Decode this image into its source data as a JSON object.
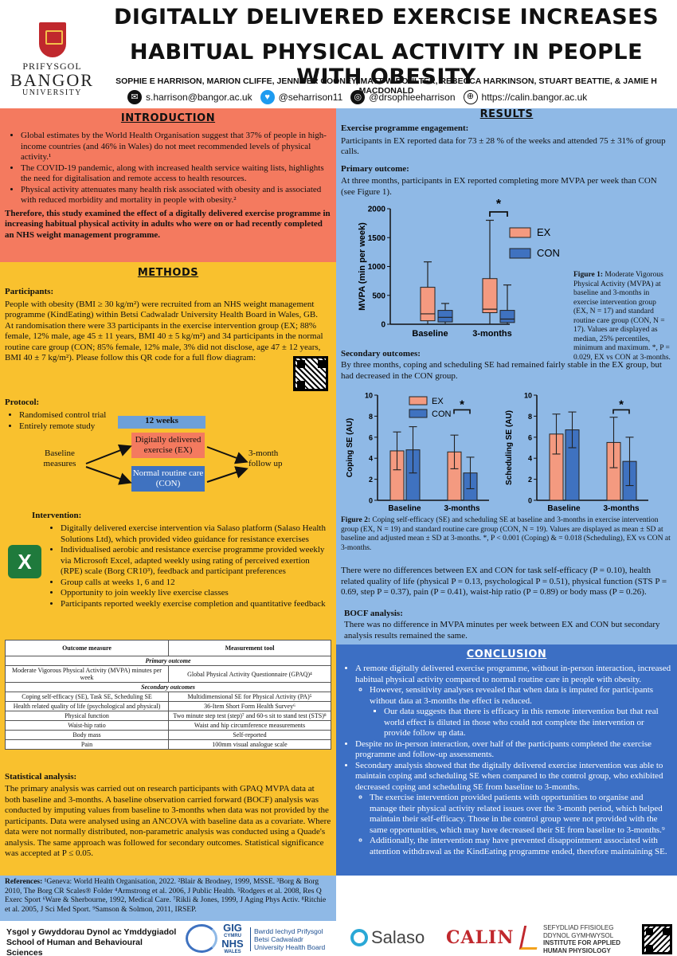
{
  "header": {
    "title_line1": "DIGITALLY DELIVERED EXERCISE INCREASES",
    "title_line2": "HABITUAL PHYSICAL ACTIVITY IN PEOPLE WITH OBESITY",
    "authors": "SOPHIE E HARRISON, MARION CLIFFE, JENNIFER COONEY, MATT W BOULTER, REBECCA HARKINSON, STUART BEATTIE, & JAMIE H MACDONALD",
    "logo": {
      "line1": "PRIFYSGOL",
      "line2": "BANGOR",
      "line3": "UNIVERSITY"
    },
    "contacts": [
      {
        "icon": "email-icon",
        "text": "s.harrison@bangor.ac.uk"
      },
      {
        "icon": "twitter-icon",
        "text": "@seharrison11"
      },
      {
        "icon": "instagram-icon",
        "text": "@drsophieeharrison"
      },
      {
        "icon": "globe-icon",
        "text": "https://calin.bangor.ac.uk"
      }
    ]
  },
  "intro": {
    "title": "INTRODUCTION",
    "bullets": [
      "Global estimates by the World Health Organisation suggest that 37% of people in high-income countries (and 46% in Wales) do not meet recommended levels of physical activity.¹",
      "The COVID-19 pandemic, along with increased health service waiting lists, highlights the need for digitalisation and remote access to health resources.",
      "Physical activity attenuates many health risk associated with obesity and is associated with reduced morbidity and mortality in people with obesity.²"
    ],
    "aim": "Therefore, this study examined the effect of a digitally delivered exercise programme in increasing habitual physical activity in adults who were on or had recently completed an NHS weight management programme."
  },
  "methods": {
    "title": "METHODS",
    "participants_heading": "Participants:",
    "participants_text": "People with obesity (BMI ≥ 30 kg/m²) were recruited from an NHS weight management programme (KindEating) within Betsi Cadwaladr University Health Board in Wales, GB. At randomisation there were 33 participants in the exercise intervention group (EX; 88% female, 12% male, age 45 ± 11 years, BMI 40 ± 5 kg/m²) and 34 participants in the normal routine care group (CON; 85% female, 12% male, 3% did not disclose, age 47 ± 12 years, BMI 40 ± 7 kg/m²). Please follow this QR code for a full flow diagram:",
    "protocol_heading": "Protocol:",
    "protocol_bullets": [
      "Randomised control trial",
      "Entirely remote study"
    ],
    "flow": {
      "weeks": "12 weeks",
      "baseline": "Baseline measures",
      "ex_box": "Digitally delivered exercise (EX)",
      "con_box": "Normal routine care (CON)",
      "followup": "3-month follow up"
    },
    "intervention_heading": "Intervention:",
    "intervention_bullets": [
      "Digitally delivered exercise intervention via Salaso platform (Salaso Health Solutions Ltd), which provided video guidance for resistance exercises",
      "Individualised aerobic and resistance exercise programme provided weekly via Microsoft Excel, adapted weekly using rating of perceived exertion (RPE) scale (Borg CR10³), feedback and participant preferences",
      "Group calls at weeks 1, 6 and 12",
      "Opportunity to join weekly live exercise classes",
      "Participants reported weekly exercise completion and quantitative feedback"
    ],
    "table": {
      "headers": [
        "Outcome measure",
        "Measurement tool"
      ],
      "primary_label": "Primary outcome",
      "secondary_label": "Secondary outcomes",
      "primary_rows": [
        [
          "Moderate Vigorous Physical Activity (MVPA) minutes per week",
          "Global Physical Activity Questionnaire (GPAQ)⁴"
        ]
      ],
      "secondary_rows": [
        [
          "Coping self-efficacy (SE), Task SE, Scheduling SE",
          "Multidimensional SE for Physical Activity (PA)⁵"
        ],
        [
          "Health related quality of life (psychological and physical)",
          "36-Item Short Form Health Survey⁶"
        ],
        [
          "Physical function",
          "Two minute step test (step)⁷ and 60-s sit to stand test (STS)⁸"
        ],
        [
          "Waist-hip ratio",
          "Waist and hip circumference measurements"
        ],
        [
          "Body mass",
          "Self-reported"
        ],
        [
          "Pain",
          "100mm visual analogue scale"
        ]
      ]
    },
    "stats_heading": "Statistical analysis:",
    "stats_text": "The primary analysis was carried out on research participants with GPAQ MVPA data at both baseline and 3-months. A baseline observation carried forward (BOCF) analysis was conducted by imputing values from baseline to 3-months when data was not provided by the participants. Data were analysed using an ANCOVA with baseline data as a covariate. Where data were not normally distributed, non-parametric analysis was conducted using a Quade's analysis. The same approach was followed for secondary outcomes. Statistical significance was accepted at P ≤ 0.05."
  },
  "references": {
    "label": "References:",
    "text": "¹Geneva: World Health Organisation, 2022. ²Blair & Brodney, 1999, MSSE. ³Borg & Borg 2010, The Borg CR Scales® Folder ⁴Armstrong et al. 2006, J Public Health. ⁵Rodgers et al. 2008, Res Q Exerc Sport ⁶Ware & Sherbourne, 1992, Medical Care. ⁷Rikli & Jones, 1999, J Aging Phys Activ. ⁸Ritchie et al. 2005, J Sci Med Sport. ⁹Samson & Solmon, 2011, IRSEP."
  },
  "results": {
    "title": "RESULTS",
    "engagement_heading": "Exercise programme engagement:",
    "engagement_text": "Participants in EX reported data for 73 ± 28 % of the weeks and attended 75 ± 31% of group calls.",
    "primary_heading": "Primary outcome:",
    "primary_text": "At three months, participants in EX reported completing more MVPA per week than CON (see Figure 1).",
    "fig1_caption_label": "Figure 1:",
    "fig1_caption": "Moderate Vigorous Physical Activity (MVPA) at baseline and 3-months in exercise intervention group (EX, N = 17) and standard routine care group (CON, N = 17). Values are displayed as median, 25% percentiles, minimum and maximum. *, P = 0.029, EX vs CON at 3-months.",
    "secondary_heading": "Secondary outcomes:",
    "secondary_text": "By three months, coping and scheduling SE had remained fairly stable in the EX group, but had decreased in the CON group.",
    "fig2_caption_label": "Figure 2:",
    "fig2_caption": "Coping self-efficacy (SE) and scheduling SE at baseline and 3-months in exercise intervention group (EX, N = 19) and standard routine care group (CON, N = 19). Values are displayed as mean ± SD at baseline and adjusted mean ± SD at 3-months. *, P < 0.001 (Coping) & = 0.018 (Scheduling), EX vs CON at 3-months.",
    "nodiff_text": "There were no differences between EX and CON for task self-efficacy (P = 0.10), health related quality of life (physical P = 0.13, psychological P = 0.51), physical function (STS P = 0.69, step P = 0.37), pain (P = 0.41), waist-hip ratio (P = 0.89) or body mass (P = 0.26).",
    "bocf_heading": "BOCF analysis:",
    "bocf_text": "There was no difference in MVPA minutes per week between EX and CON but secondary analysis results remained the same."
  },
  "conclusion": {
    "title": "CONCLUSION",
    "b1": "A remote digitally delivered exercise programme, without in-person interaction, increased habitual physical activity compared to normal routine care in people with obesity.",
    "b1_sub": "However, sensitivity analyses revealed that when data is imputed for participants without data at 3-months the effect is reduced.",
    "b1_subsub": "Our data suggests that there is efficacy in this remote intervention but that real world effect is diluted in those who could not complete the intervention or provide follow up data.",
    "b2": "Despite no in-person interaction, over half of the participants completed the exercise programme and follow-up assessments.",
    "b3": "Secondary analysis showed that the digitally delivered exercise intervention was able to maintain coping and scheduling SE when compared to the control group, who exhibited decreased coping and scheduling SE from baseline to 3-months.",
    "b3_sub1": "The exercise intervention provided patients with opportunities to organise and manage their physical activity related issues over the 3-month period, which helped maintain their self-efficacy. Those in the control group were not provided with the same opportunities, which may have decreased their SE from baseline to 3-months.⁹",
    "b3_sub2": "Additionally, the intervention may have prevented disappointment associated with attention withdrawal as the KindEating programme ended, therefore maintaining SE."
  },
  "footer": {
    "school_line1": "Ysgol y Gwyddorau Dynol ac Ymddygiadol",
    "school_line2": "School of Human and Behavioural Sciences",
    "nhs_gig": "GIG",
    "nhs_cymru": "CYMRU",
    "nhs_nhs": "NHS",
    "nhs_wales": "WALES",
    "bcu_line1": "Bwrdd Iechyd Prifysgol",
    "bcu_line2": "Betsi Cadwaladr",
    "bcu_line3": "University Health Board",
    "salaso": "Salaso",
    "calin": "CALIN",
    "iahp_line1": "SEFYDLIAD FFISIOLEG",
    "iahp_line2": "DDYNOL GYMHWYSOL",
    "iahp_line3": "INSTITUTE FOR APPLIED",
    "iahp_line4": "HUMAN PHYSIOLOGY"
  },
  "chart_data": [
    {
      "type": "box",
      "ylabel": "MVPA (min per week)",
      "ylim": [
        0,
        2000
      ],
      "yticks": [
        0,
        500,
        1000,
        1500,
        2000
      ],
      "categories": [
        "Baseline",
        "3-months"
      ],
      "series": [
        {
          "name": "EX",
          "color": "#f49a80",
          "boxes": [
            {
              "min": 0,
              "q1": 60,
              "median": 180,
              "q3": 640,
              "max": 1080
            },
            {
              "min": 0,
              "q1": 200,
              "median": 260,
              "q3": 790,
              "max": 1800
            }
          ]
        },
        {
          "name": "CON",
          "color": "#3f72c0",
          "boxes": [
            {
              "min": 0,
              "q1": 40,
              "median": 120,
              "q3": 240,
              "max": 360
            },
            {
              "min": 0,
              "q1": 30,
              "median": 90,
              "q3": 240,
              "max": 680
            }
          ]
        }
      ],
      "significance": {
        "category": "3-months",
        "label": "*"
      }
    },
    {
      "type": "bar",
      "ylabel": "Coping SE (AU)",
      "ylim": [
        0,
        10
      ],
      "yticks": [
        0,
        2,
        4,
        6,
        8,
        10
      ],
      "categories": [
        "Baseline",
        "3-months"
      ],
      "series": [
        {
          "name": "EX",
          "color": "#f49a80",
          "values": [
            4.7,
            4.6
          ],
          "sd": [
            1.8,
            1.6
          ]
        },
        {
          "name": "CON",
          "color": "#3f72c0",
          "values": [
            4.8,
            2.6
          ],
          "sd": [
            2.2,
            1.5
          ]
        }
      ],
      "significance": {
        "category": "3-months",
        "label": "*"
      }
    },
    {
      "type": "bar",
      "ylabel": "Scheduling SE (AU)",
      "ylim": [
        0,
        10
      ],
      "yticks": [
        0,
        2,
        4,
        6,
        8,
        10
      ],
      "categories": [
        "Baseline",
        "3-months"
      ],
      "series": [
        {
          "name": "EX",
          "color": "#f49a80",
          "values": [
            6.3,
            5.5
          ],
          "sd": [
            1.9,
            2.4
          ]
        },
        {
          "name": "CON",
          "color": "#3f72c0",
          "values": [
            6.7,
            3.7
          ],
          "sd": [
            1.7,
            2.3
          ]
        }
      ],
      "significance": {
        "category": "3-months",
        "label": "*"
      }
    }
  ]
}
